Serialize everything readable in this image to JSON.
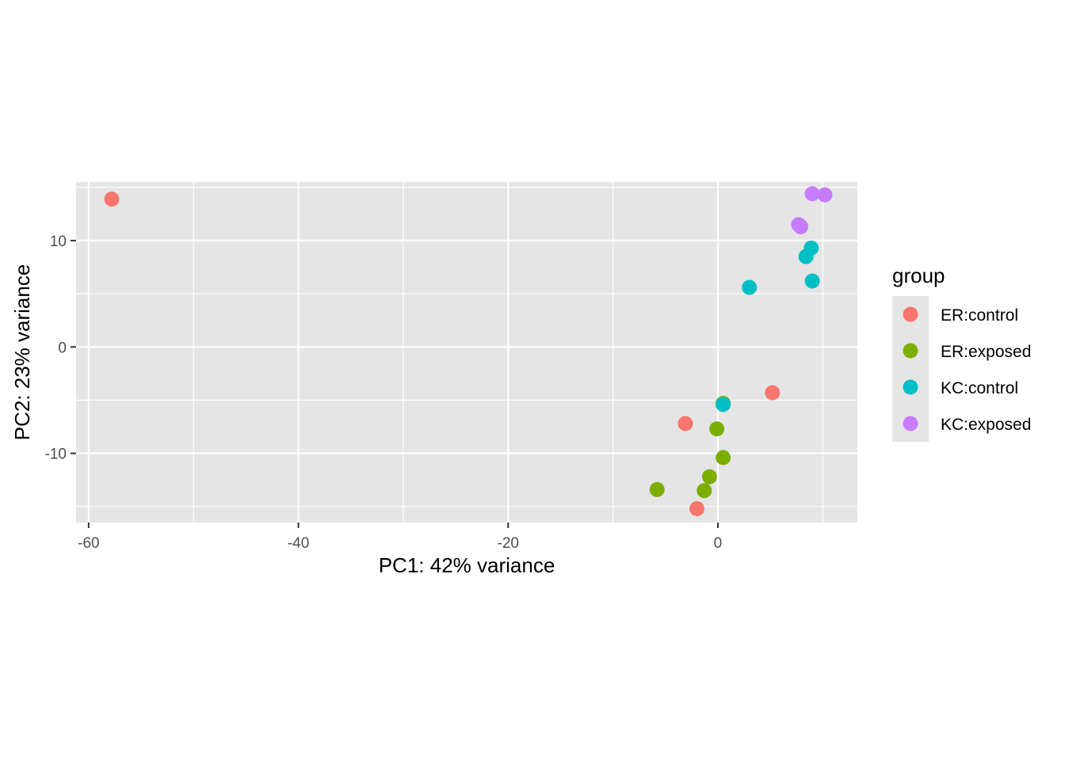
{
  "chart_data": {
    "type": "scatter",
    "title": "",
    "xlabel": "PC1: 42% variance",
    "ylabel": "PC2: 23% variance",
    "xlim": [
      -61.2,
      13.3
    ],
    "ylim": [
      -16.5,
      15.5
    ],
    "x_ticks": [
      -60,
      -40,
      -20,
      0
    ],
    "y_ticks": [
      10,
      0,
      -10
    ],
    "x_tick_labels": [
      "-60",
      "-40",
      "-20",
      "0"
    ],
    "y_tick_labels": [
      "10",
      "0",
      "-10"
    ],
    "x_minor_breaks": [
      -50,
      -30,
      -10,
      10
    ],
    "y_minor_breaks": [
      15,
      5,
      -5,
      -15
    ],
    "grid": true,
    "panel_background": "#e5e5e5",
    "legend": {
      "title": "group",
      "position": "right"
    },
    "series": [
      {
        "name": "ER:control",
        "color": "#F8766D",
        "points": [
          {
            "x": -57.8,
            "y": 13.9
          },
          {
            "x": -3.1,
            "y": -7.2
          },
          {
            "x": 5.2,
            "y": -4.3
          },
          {
            "x": -2.0,
            "y": -15.2
          }
        ]
      },
      {
        "name": "ER:exposed",
        "color": "#7CAE00",
        "points": [
          {
            "x": 0.5,
            "y": -5.3
          },
          {
            "x": -0.1,
            "y": -7.7
          },
          {
            "x": 0.5,
            "y": -10.4
          },
          {
            "x": -0.8,
            "y": -12.2
          },
          {
            "x": -1.3,
            "y": -13.5
          },
          {
            "x": -5.8,
            "y": -13.4
          }
        ]
      },
      {
        "name": "KC:control",
        "color": "#00BFC4",
        "points": [
          {
            "x": 0.5,
            "y": -5.4
          },
          {
            "x": 3.0,
            "y": 5.6
          },
          {
            "x": 8.4,
            "y": 8.5
          },
          {
            "x": 8.9,
            "y": 9.3
          },
          {
            "x": 9.0,
            "y": 6.2
          }
        ]
      },
      {
        "name": "KC:exposed",
        "color": "#C77CFF",
        "points": [
          {
            "x": 7.7,
            "y": 11.5
          },
          {
            "x": 7.9,
            "y": 11.3
          },
          {
            "x": 9.0,
            "y": 14.4
          },
          {
            "x": 10.2,
            "y": 14.3
          }
        ]
      }
    ]
  }
}
